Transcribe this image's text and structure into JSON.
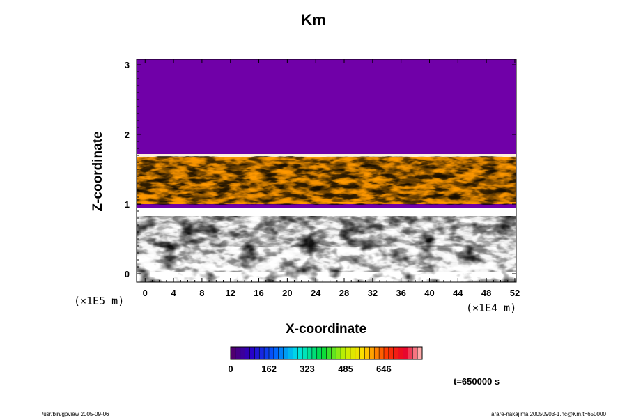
{
  "chart_data": {
    "type": "heatmap",
    "title": "Km",
    "xlabel": "X-coordinate",
    "ylabel": "Z-coordinate",
    "x_scale_label": "(×1E4 m)",
    "y_scale_label": "(×1E5 m)",
    "xlim": [
      -1.2,
      52.2
    ],
    "ylim": [
      -0.12,
      3.08
    ],
    "x_ticks": [
      0,
      4,
      8,
      12,
      16,
      20,
      24,
      28,
      32,
      36,
      40,
      44,
      48,
      52
    ],
    "y_ticks": [
      0,
      1,
      2,
      3
    ],
    "colorbar": {
      "ticks": [
        0,
        162,
        323,
        485,
        646
      ],
      "max": 808,
      "levels": 40
    },
    "regions": [
      {
        "name": "upper-uniform",
        "z_range": [
          1.72,
          3.08
        ],
        "value": 0
      },
      {
        "name": "upper-turbulent-layer",
        "z_range": [
          1.0,
          1.72
        ],
        "value_range": [
          0,
          808
        ]
      },
      {
        "name": "stable-band",
        "z_range": [
          0.95,
          1.0
        ],
        "value": 0
      },
      {
        "name": "low-band",
        "z_range": [
          0.88,
          0.95
        ],
        "value": 808
      },
      {
        "name": "lower-turbulent-layer",
        "z_range": [
          -0.12,
          0.88
        ],
        "value_range": [
          0,
          808
        ]
      }
    ]
  },
  "annotations": {
    "time": "t=650000 s",
    "footer_left": "/usr/bin/gpview 2005-09-06",
    "footer_right": "arare-nakajima 20050903-1.nc@Km,t=650000"
  }
}
